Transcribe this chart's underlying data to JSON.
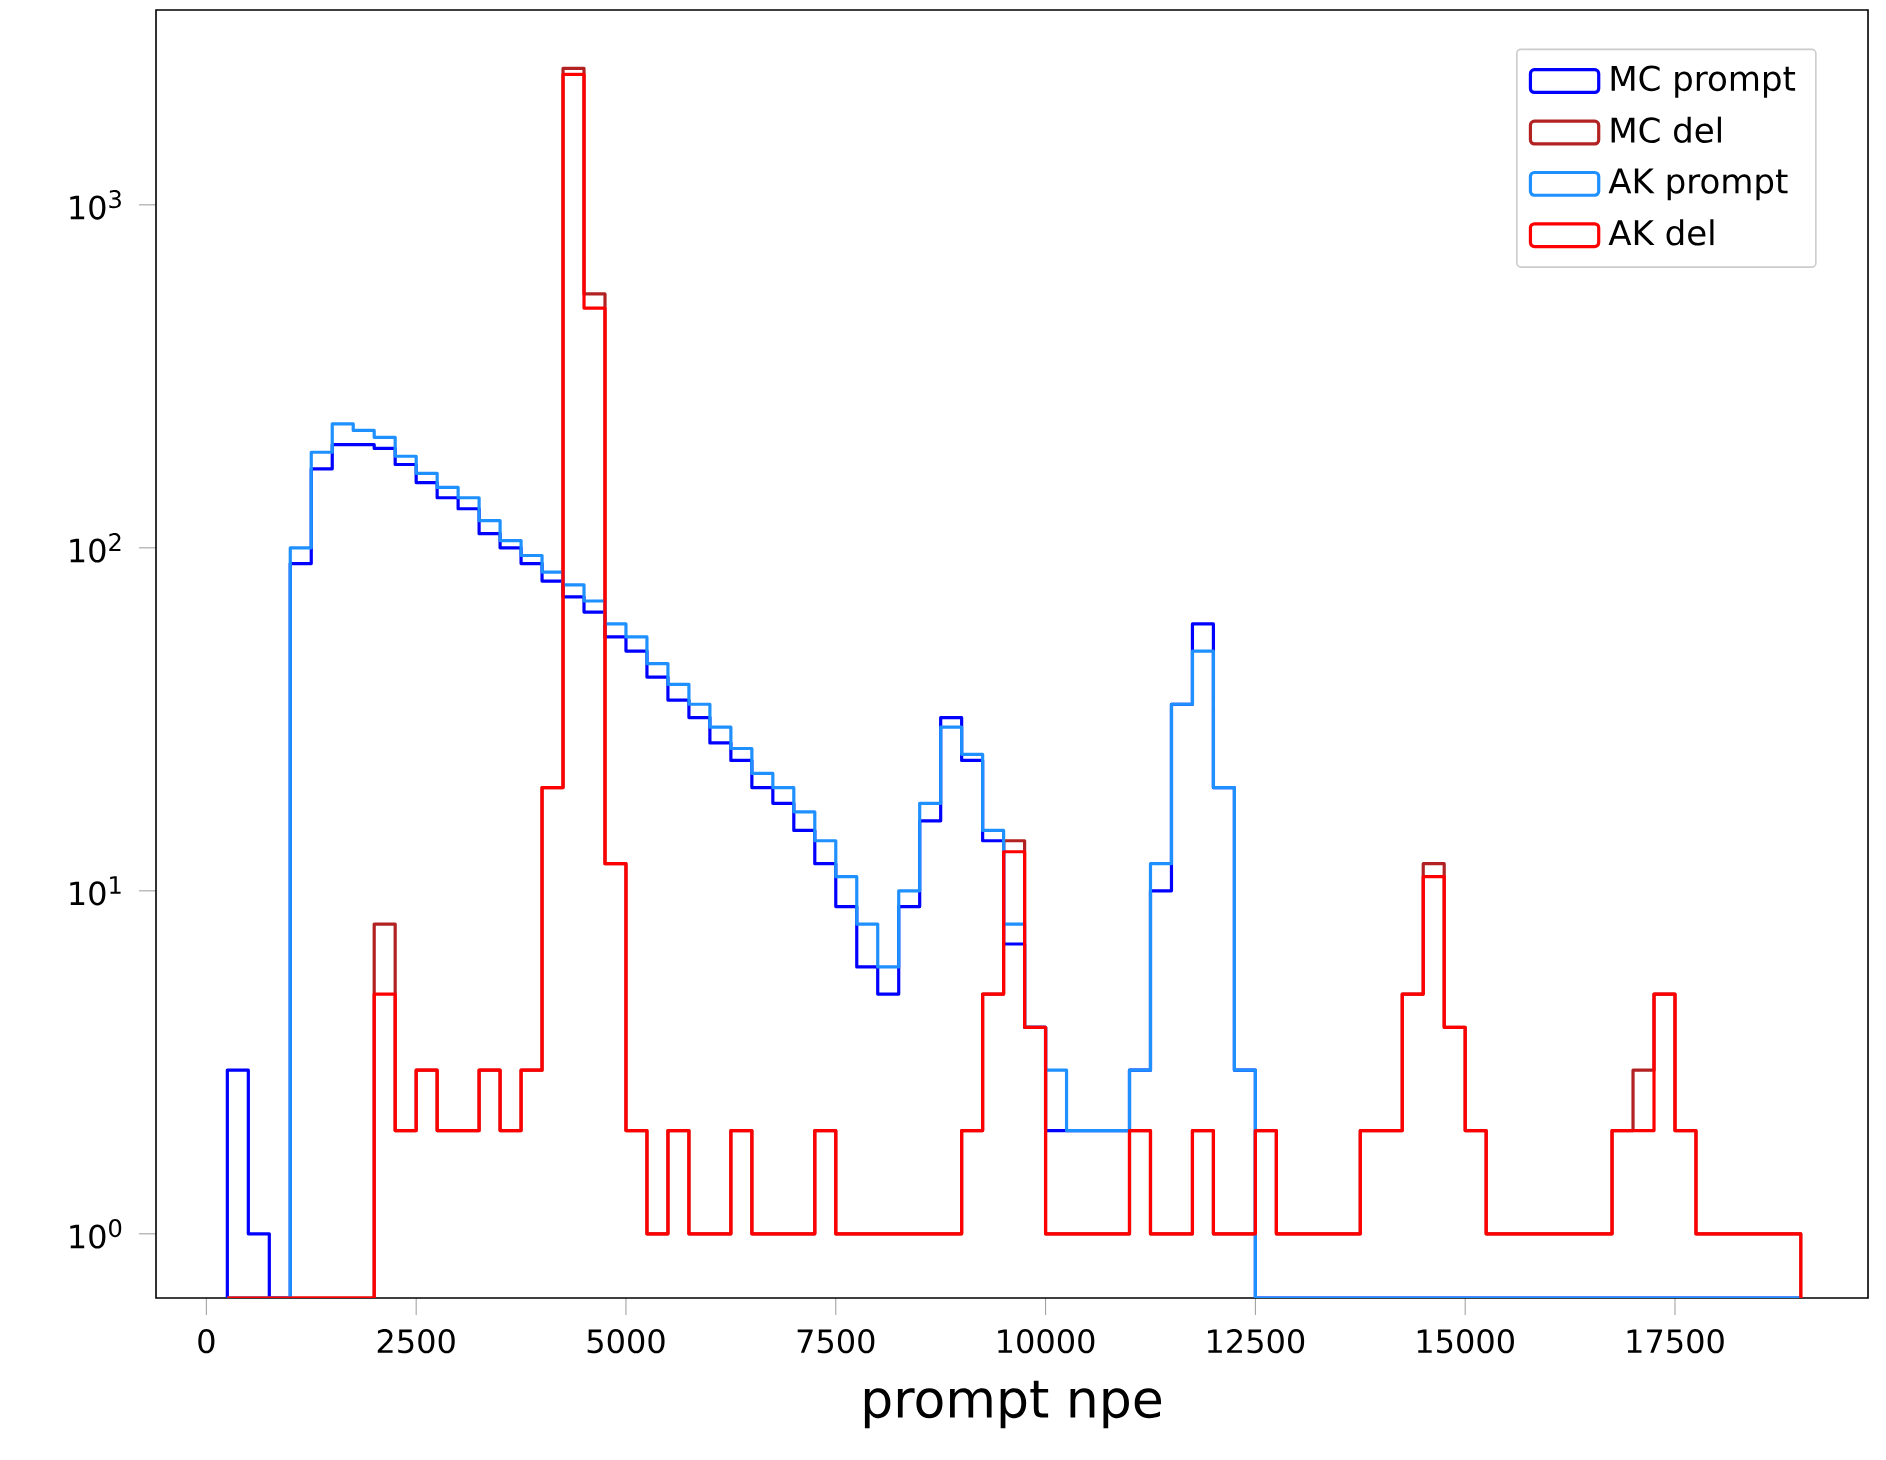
{
  "chart_data": {
    "type": "histogram",
    "xlabel": "prompt npe",
    "log": "y",
    "legend": "top right",
    "grid": false,
    "xlim": [
      -600,
      19800
    ],
    "ylim": [
      0.65,
      3700
    ],
    "xticks": [
      0,
      2500,
      5000,
      7500,
      10000,
      12500,
      15000,
      17500
    ],
    "yticks": [
      {
        "value": 1,
        "label": "10$^{0}$"
      },
      {
        "value": 10,
        "label": "10$^{1}$"
      },
      {
        "value": 100,
        "label": "10$^{2}$"
      },
      {
        "value": 1000,
        "label": "10$^{3}$"
      }
    ],
    "bins": [
      250,
      500,
      750,
      1000,
      1250,
      1500,
      1750,
      2000,
      2250,
      2500,
      2750,
      3000,
      3250,
      3500,
      3750,
      4000,
      4250,
      4500,
      4750,
      5000,
      5250,
      5500,
      5750,
      6000,
      6250,
      6500,
      6750,
      7000,
      7250,
      7500,
      7750,
      8000,
      8250,
      8500,
      8750,
      9000,
      9250,
      9500,
      9750,
      10000,
      10250,
      10500,
      10750,
      11000,
      11250,
      11500,
      11750,
      12000,
      12250,
      12500,
      12750,
      13000,
      13250,
      13500,
      13750,
      14000,
      14250,
      14500,
      14750,
      15000,
      15250,
      15500,
      15750,
      16000,
      16250,
      16500,
      16750,
      17000,
      17250,
      17500,
      17750,
      18000,
      18250,
      18500,
      18750,
      19000
    ],
    "series": [
      {
        "name": "MC prompt",
        "color": "#0000ff",
        "values": [
          3,
          1,
          null,
          90,
          170,
          200,
          200,
          195,
          175,
          155,
          140,
          130,
          110,
          100,
          90,
          80,
          72,
          65,
          55,
          50,
          42,
          36,
          32,
          27,
          24,
          20,
          18,
          15,
          12,
          9,
          6,
          5,
          9,
          16,
          32,
          24,
          14,
          7,
          4,
          2,
          2,
          2,
          2,
          3,
          10,
          35,
          60,
          20,
          3,
          null,
          null,
          null,
          null,
          null,
          null,
          null,
          null,
          null,
          null,
          null,
          null,
          null,
          null,
          null,
          null,
          null,
          null,
          null,
          null,
          null,
          null,
          null,
          null,
          null,
          null
        ]
      },
      {
        "name": "MC del",
        "color": "#b22222",
        "values": [
          null,
          null,
          null,
          null,
          null,
          null,
          null,
          8,
          2,
          3,
          2,
          2,
          3,
          2,
          3,
          20,
          2500,
          550,
          12,
          2,
          1,
          2,
          1,
          1,
          2,
          1,
          1,
          1,
          2,
          1,
          1,
          1,
          1,
          1,
          1,
          2,
          5,
          14,
          4,
          1,
          1,
          1,
          1,
          2,
          1,
          1,
          2,
          1,
          1,
          2,
          1,
          1,
          1,
          1,
          2,
          2,
          5,
          12,
          4,
          2,
          1,
          1,
          1,
          1,
          1,
          1,
          2,
          3,
          5,
          2,
          1,
          1,
          1,
          1,
          1
        ]
      },
      {
        "name": "AK prompt",
        "color": "#1e90ff",
        "values": [
          null,
          null,
          null,
          100,
          190,
          230,
          220,
          210,
          185,
          165,
          150,
          140,
          120,
          105,
          95,
          85,
          78,
          70,
          60,
          55,
          46,
          40,
          35,
          30,
          26,
          22,
          20,
          17,
          14,
          11,
          8,
          6,
          10,
          18,
          30,
          25,
          15,
          8,
          4,
          3,
          2,
          2,
          2,
          3,
          12,
          35,
          50,
          20,
          3,
          null,
          null,
          null,
          null,
          null,
          null,
          null,
          null,
          null,
          null,
          null,
          null,
          null,
          null,
          null,
          null,
          null,
          null,
          null,
          null,
          null,
          null,
          null,
          null,
          null,
          null
        ]
      },
      {
        "name": "AK del",
        "color": "#ff0000",
        "values": [
          null,
          null,
          null,
          null,
          null,
          null,
          null,
          5,
          2,
          3,
          2,
          2,
          3,
          2,
          3,
          20,
          2400,
          500,
          12,
          2,
          1,
          2,
          1,
          1,
          2,
          1,
          1,
          1,
          2,
          1,
          1,
          1,
          1,
          1,
          1,
          2,
          5,
          13,
          4,
          1,
          1,
          1,
          1,
          2,
          1,
          1,
          2,
          1,
          1,
          2,
          1,
          1,
          1,
          1,
          2,
          2,
          5,
          11,
          4,
          2,
          1,
          1,
          1,
          1,
          1,
          1,
          2,
          2,
          5,
          2,
          1,
          1,
          1,
          1,
          1
        ]
      }
    ]
  }
}
